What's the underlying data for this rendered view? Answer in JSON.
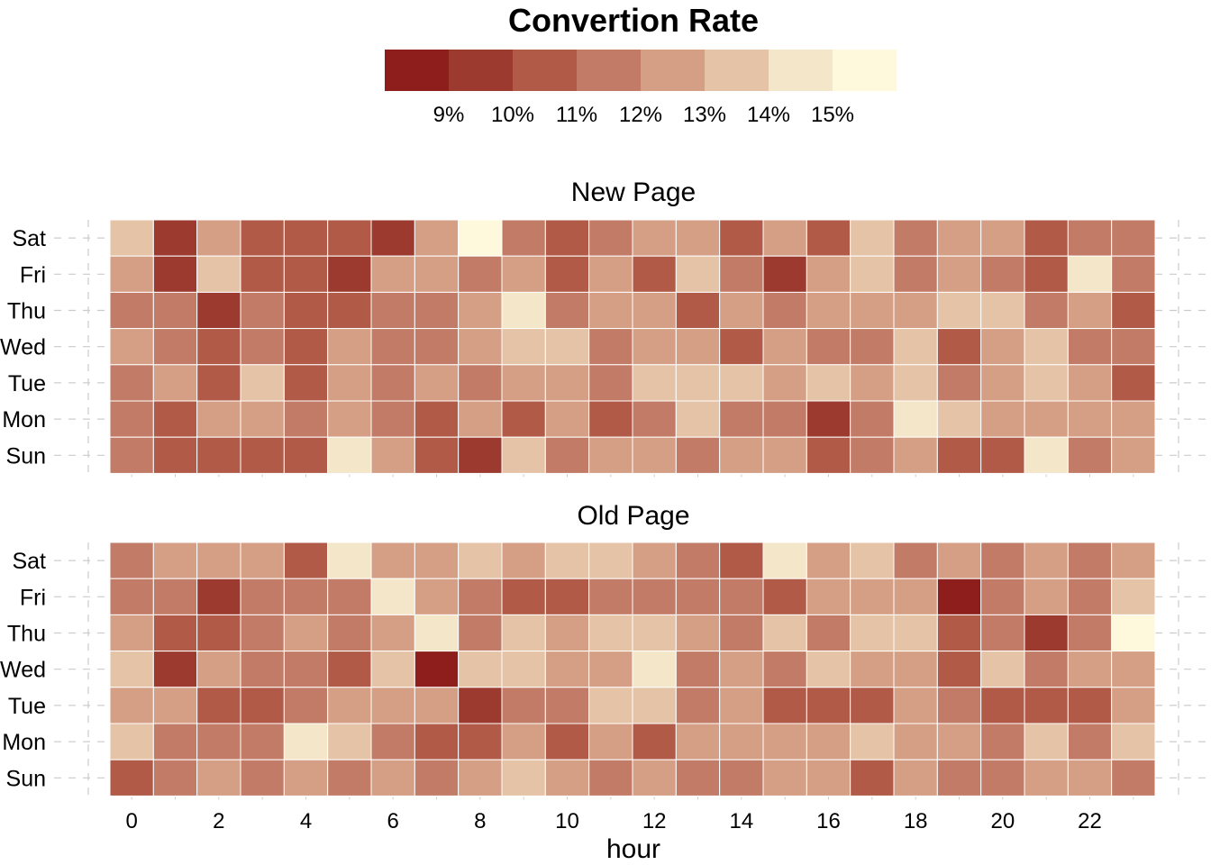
{
  "chart_data": {
    "type": "heatmap",
    "title": "Convertion Rate",
    "xlabel": "hour",
    "x": [
      0,
      1,
      2,
      3,
      4,
      5,
      6,
      7,
      8,
      9,
      10,
      11,
      12,
      13,
      14,
      15,
      16,
      17,
      18,
      19,
      20,
      21,
      22,
      23
    ],
    "x_ticks": [
      "0",
      "2",
      "4",
      "6",
      "8",
      "10",
      "12",
      "14",
      "16",
      "18",
      "20",
      "22"
    ],
    "y": [
      "Sat",
      "Fri",
      "Thu",
      "Wed",
      "Tue",
      "Mon",
      "Sun"
    ],
    "legend": {
      "labels": [
        "9%",
        "10%",
        "11%",
        "12%",
        "13%",
        "14%",
        "15%"
      ],
      "colors": [
        "#8e1e1c",
        "#9c3a2f",
        "#b15a47",
        "#c27b67",
        "#d49f85",
        "#e5c3a7",
        "#f4e6c8",
        "#fef8dc"
      ],
      "placement": "top"
    },
    "panels": [
      {
        "name": "New Page",
        "rows": [
          [
            6,
            2,
            5,
            3,
            3,
            3,
            2,
            5,
            8,
            4,
            3,
            4,
            5,
            5,
            3,
            5,
            3,
            6,
            4,
            5,
            5,
            3,
            4,
            4
          ],
          [
            5,
            2,
            6,
            3,
            3,
            2,
            5,
            5,
            4,
            5,
            3,
            5,
            3,
            6,
            4,
            2,
            5,
            6,
            4,
            5,
            4,
            3,
            7,
            4
          ],
          [
            4,
            4,
            2,
            4,
            3,
            3,
            4,
            4,
            5,
            7,
            4,
            5,
            5,
            3,
            5,
            4,
            5,
            5,
            5,
            6,
            6,
            4,
            5,
            3
          ],
          [
            5,
            4,
            3,
            4,
            3,
            5,
            4,
            4,
            5,
            6,
            6,
            4,
            5,
            5,
            3,
            5,
            4,
            4,
            6,
            3,
            5,
            6,
            4,
            4
          ],
          [
            4,
            5,
            3,
            6,
            3,
            5,
            4,
            5,
            4,
            5,
            5,
            4,
            6,
            6,
            6,
            5,
            6,
            5,
            6,
            4,
            5,
            6,
            5,
            3
          ],
          [
            4,
            3,
            5,
            5,
            4,
            5,
            4,
            3,
            5,
            3,
            5,
            3,
            4,
            6,
            4,
            4,
            2,
            4,
            7,
            6,
            5,
            5,
            5,
            5
          ],
          [
            4,
            3,
            3,
            3,
            3,
            7,
            5,
            3,
            2,
            6,
            4,
            5,
            5,
            4,
            5,
            5,
            3,
            4,
            5,
            3,
            3,
            7,
            4,
            5
          ]
        ]
      },
      {
        "name": "Old Page",
        "rows": [
          [
            4,
            5,
            5,
            5,
            3,
            7,
            5,
            5,
            6,
            5,
            6,
            6,
            5,
            4,
            3,
            7,
            5,
            6,
            4,
            5,
            4,
            5,
            4,
            5
          ],
          [
            4,
            4,
            2,
            4,
            4,
            4,
            7,
            5,
            4,
            3,
            3,
            4,
            4,
            4,
            4,
            3,
            5,
            5,
            5,
            1,
            4,
            5,
            4,
            6
          ],
          [
            5,
            3,
            3,
            4,
            5,
            4,
            5,
            7,
            4,
            6,
            5,
            6,
            6,
            5,
            4,
            6,
            4,
            6,
            6,
            3,
            4,
            2,
            4,
            8
          ],
          [
            6,
            2,
            5,
            4,
            4,
            3,
            6,
            1,
            6,
            6,
            5,
            5,
            7,
            4,
            5,
            4,
            6,
            5,
            5,
            3,
            6,
            4,
            5,
            5
          ],
          [
            5,
            5,
            3,
            3,
            4,
            5,
            5,
            5,
            2,
            4,
            4,
            6,
            6,
            4,
            5,
            3,
            3,
            3,
            5,
            4,
            3,
            3,
            3,
            5
          ],
          [
            6,
            4,
            4,
            4,
            7,
            6,
            4,
            3,
            3,
            5,
            3,
            5,
            3,
            5,
            5,
            5,
            5,
            6,
            5,
            5,
            4,
            6,
            4,
            6
          ],
          [
            3,
            4,
            5,
            4,
            5,
            4,
            5,
            4,
            5,
            6,
            5,
            4,
            5,
            4,
            4,
            5,
            5,
            3,
            5,
            4,
            4,
            5,
            5,
            4
          ]
        ]
      }
    ]
  }
}
